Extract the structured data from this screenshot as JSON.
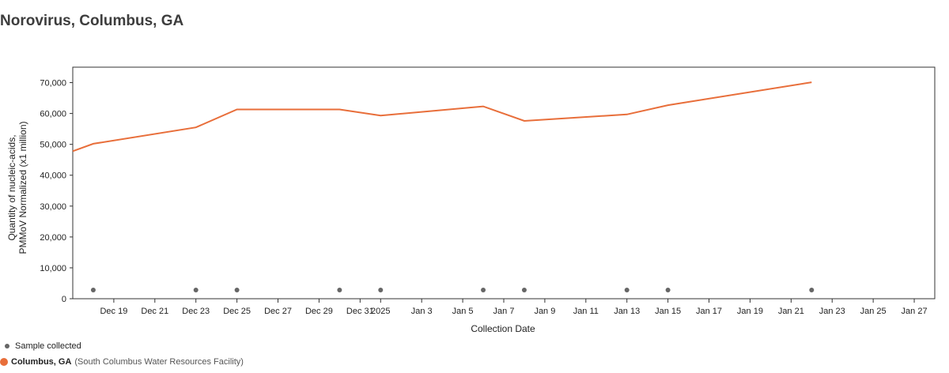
{
  "header": {
    "title": "Norovirus, Columbus, GA"
  },
  "colors": {
    "series": "#e86e3a",
    "sample_dot": "#666666",
    "axis": "#333333",
    "gridline": "#888888"
  },
  "legend": {
    "samples_label": "Sample collected",
    "site_name": "Columbus, GA",
    "site_facility": "(South Columbus Water Resources Facility)"
  },
  "chart_data": {
    "type": "line",
    "title": "Norovirus, Columbus, GA",
    "xlabel": "Collection Date",
    "ylabel": [
      "Quantity of nucleic-acids,",
      "PMMoV Normalized (x1 million)"
    ],
    "x_axis": {
      "type": "date",
      "min": "2024-12-17",
      "max": "2025-01-28",
      "ticks": [
        {
          "date": "2024-12-19",
          "label": "Dec 19"
        },
        {
          "date": "2024-12-21",
          "label": "Dec 21"
        },
        {
          "date": "2024-12-23",
          "label": "Dec 23"
        },
        {
          "date": "2024-12-25",
          "label": "Dec 25"
        },
        {
          "date": "2024-12-27",
          "label": "Dec 27"
        },
        {
          "date": "2024-12-29",
          "label": "Dec 29"
        },
        {
          "date": "2024-12-31",
          "label": "Dec 31"
        },
        {
          "date": "2025-01-01",
          "label": "2025"
        },
        {
          "date": "2025-01-03",
          "label": "Jan 3"
        },
        {
          "date": "2025-01-05",
          "label": "Jan 5"
        },
        {
          "date": "2025-01-07",
          "label": "Jan 7"
        },
        {
          "date": "2025-01-09",
          "label": "Jan 9"
        },
        {
          "date": "2025-01-11",
          "label": "Jan 11"
        },
        {
          "date": "2025-01-13",
          "label": "Jan 13"
        },
        {
          "date": "2025-01-15",
          "label": "Jan 15"
        },
        {
          "date": "2025-01-17",
          "label": "Jan 17"
        },
        {
          "date": "2025-01-19",
          "label": "Jan 19"
        },
        {
          "date": "2025-01-21",
          "label": "Jan 21"
        },
        {
          "date": "2025-01-23",
          "label": "Jan 23"
        },
        {
          "date": "2025-01-25",
          "label": "Jan 25"
        },
        {
          "date": "2025-01-27",
          "label": "Jan 27"
        }
      ]
    },
    "ylim": [
      0,
      75000
    ],
    "y_ticks": [
      {
        "value": 0,
        "label": "0"
      },
      {
        "value": 10000,
        "label": "10,000"
      },
      {
        "value": 20000,
        "label": "20,000"
      },
      {
        "value": 30000,
        "label": "30,000"
      },
      {
        "value": 40000,
        "label": "40,000"
      },
      {
        "value": 50000,
        "label": "50,000"
      },
      {
        "value": 60000,
        "label": "60,000"
      },
      {
        "value": 70000,
        "label": "70,000"
      }
    ],
    "series": [
      {
        "name": "Columbus, GA",
        "points": [
          {
            "date": "2024-12-17",
            "value": 47800
          },
          {
            "date": "2024-12-18",
            "value": 50200
          },
          {
            "date": "2024-12-23",
            "value": 55500
          },
          {
            "date": "2024-12-25",
            "value": 61300
          },
          {
            "date": "2024-12-30",
            "value": 61300
          },
          {
            "date": "2025-01-01",
            "value": 59300
          },
          {
            "date": "2025-01-06",
            "value": 62300
          },
          {
            "date": "2025-01-08",
            "value": 57600
          },
          {
            "date": "2025-01-13",
            "value": 59700
          },
          {
            "date": "2025-01-15",
            "value": 62700
          },
          {
            "date": "2025-01-22",
            "value": 70100
          }
        ]
      }
    ],
    "samples": [
      "2024-12-18",
      "2024-12-23",
      "2024-12-25",
      "2024-12-30",
      "2025-01-01",
      "2025-01-06",
      "2025-01-08",
      "2025-01-13",
      "2025-01-15",
      "2025-01-22"
    ],
    "grid": false,
    "legend_position": "bottom-left"
  }
}
